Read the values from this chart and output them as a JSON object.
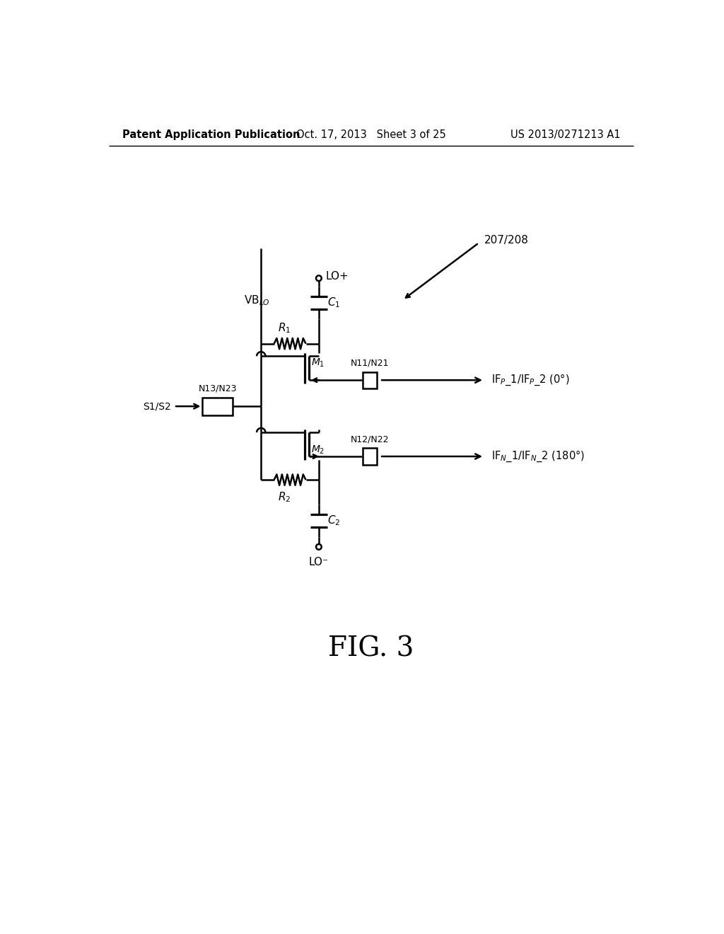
{
  "title_left": "Patent Application Publication",
  "title_center": "Oct. 17, 2013   Sheet 3 of 25",
  "title_right": "US 2013/0271213 A1",
  "fig_label": "FIG. 3",
  "ref_number": "207/208",
  "bg_color": "#ffffff",
  "line_color": "#000000",
  "fig_label_fontsize": 28,
  "header_fontsize": 10.5
}
